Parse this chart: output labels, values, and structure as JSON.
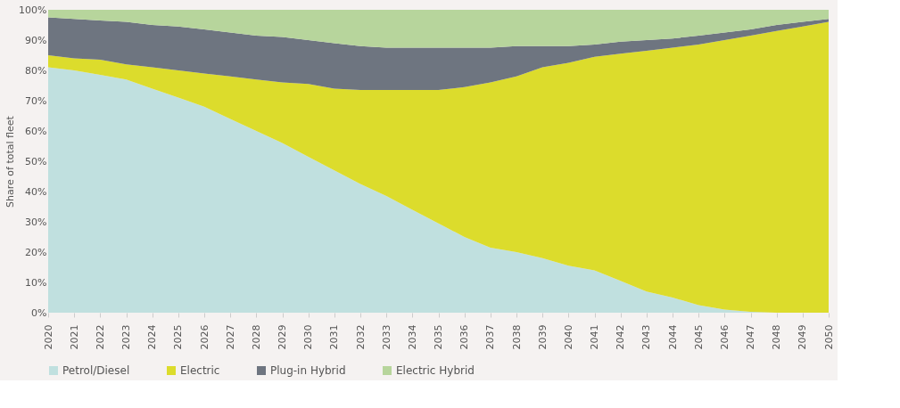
{
  "chart_data": {
    "type": "area",
    "stacked": true,
    "ylabel": "Share of total fleet",
    "categories": [
      "2020",
      "2021",
      "2022",
      "2023",
      "2024",
      "2025",
      "2026",
      "2027",
      "2028",
      "2029",
      "2030",
      "2031",
      "2032",
      "2033",
      "2034",
      "2035",
      "2036",
      "2037",
      "2038",
      "2039",
      "2040",
      "2041",
      "2042",
      "2043",
      "2044",
      "2045",
      "2046",
      "2047",
      "2048",
      "2049",
      "2050"
    ],
    "series": [
      {
        "name": "Petrol/Diesel",
        "color": "#c0e0df",
        "values": [
          81,
          80,
          78.5,
          77,
          74,
          71,
          68,
          64,
          60,
          56,
          51.5,
          47,
          42.5,
          38.5,
          34,
          29.5,
          25,
          21.5,
          20,
          18,
          15.5,
          14,
          10.5,
          7,
          5,
          2.5,
          1,
          0.3,
          0,
          0,
          0
        ]
      },
      {
        "name": "Electric",
        "color": "#dcdc2c",
        "values": [
          4,
          4,
          5,
          5,
          7,
          9,
          11,
          14,
          17,
          20,
          24,
          27,
          31,
          35,
          39.5,
          44,
          49.5,
          54.5,
          58,
          63,
          67,
          70.5,
          75,
          79.5,
          82.5,
          86,
          89,
          91.2,
          93,
          94.5,
          96
        ]
      },
      {
        "name": "Plug-in Hybrid",
        "color": "#6e7580",
        "values": [
          12.5,
          13,
          13,
          14,
          14,
          14.5,
          14.5,
          14.5,
          14.5,
          15,
          14.5,
          15,
          14.5,
          14,
          14,
          14,
          13,
          11.5,
          10,
          7,
          5.5,
          4,
          4,
          3.5,
          3,
          3,
          2.5,
          2,
          2,
          1.5,
          1
        ]
      },
      {
        "name": "Electric Hybrid",
        "color": "#b7d59c",
        "values": [
          2.5,
          3,
          3.5,
          4,
          5,
          5.5,
          6.5,
          7.5,
          8.5,
          9,
          10,
          11,
          12,
          12.5,
          12.5,
          12.5,
          12.5,
          12.5,
          12,
          12,
          12,
          11.5,
          10.5,
          10,
          9.5,
          8.5,
          7.5,
          6.5,
          5,
          4,
          3
        ]
      }
    ],
    "ylim": [
      0,
      100
    ],
    "yticks": [
      {
        "value": 0,
        "label": "0%"
      },
      {
        "value": 10,
        "label": "10%"
      },
      {
        "value": 20,
        "label": "20%"
      },
      {
        "value": 30,
        "label": "30%"
      },
      {
        "value": 40,
        "label": "40%"
      },
      {
        "value": 50,
        "label": "50%"
      },
      {
        "value": 60,
        "label": "60%"
      },
      {
        "value": 70,
        "label": "70%"
      },
      {
        "value": 80,
        "label": "80%"
      },
      {
        "value": 90,
        "label": "90%"
      },
      {
        "value": 100,
        "label": "100%"
      }
    ],
    "grid": false,
    "legend": "bottom"
  }
}
